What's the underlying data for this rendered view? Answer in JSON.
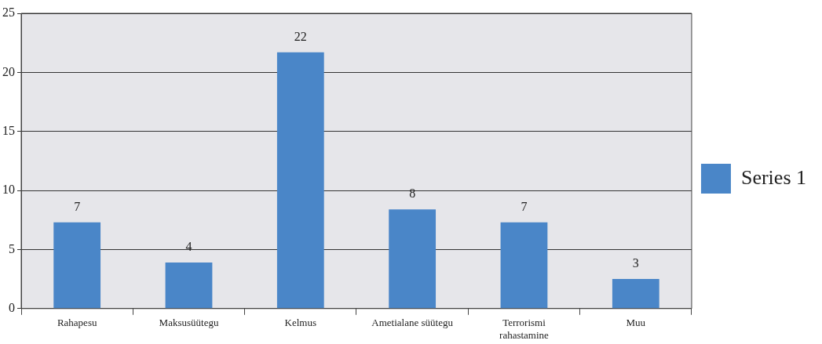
{
  "chart_data": {
    "type": "bar",
    "categories": [
      "Rahapesu",
      "Maksusüütegu",
      "Kelmus",
      "Ametialane süütegu",
      "Terrorismi rahastamine",
      "Muu"
    ],
    "series": [
      {
        "name": "Series 1",
        "color": "#4a86c8",
        "values": [
          7.3,
          3.9,
          21.7,
          8.4,
          7.3,
          2.5
        ],
        "value_labels": [
          "7",
          "4",
          "22",
          "8",
          "7",
          "3"
        ]
      }
    ],
    "ylim": [
      0,
      25
    ],
    "yticks": [
      0,
      5,
      10,
      15,
      20,
      25
    ],
    "grid": "y",
    "legend": "right"
  }
}
